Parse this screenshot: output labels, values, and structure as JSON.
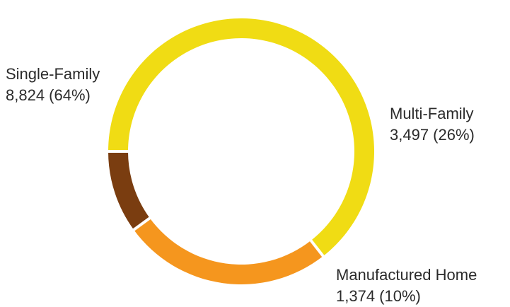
{
  "chart_data": {
    "type": "pie",
    "donut": true,
    "start_angle_deg": 180,
    "direction": "clockwise",
    "slices": [
      {
        "name": "Single-Family",
        "value": 8824,
        "label_value": "8,824 (64%)",
        "percent": 64,
        "color": "#f0dc14"
      },
      {
        "name": "Multi-Family",
        "value": 3497,
        "label_value": "3,497 (26%)",
        "percent": 26,
        "color": "#f5961e"
      },
      {
        "name": "Manufactured Home",
        "value": 1374,
        "label_value": "1,374 (10%)",
        "percent": 10,
        "color": "#7a3d10"
      }
    ],
    "separator_color": "#ffffff"
  }
}
